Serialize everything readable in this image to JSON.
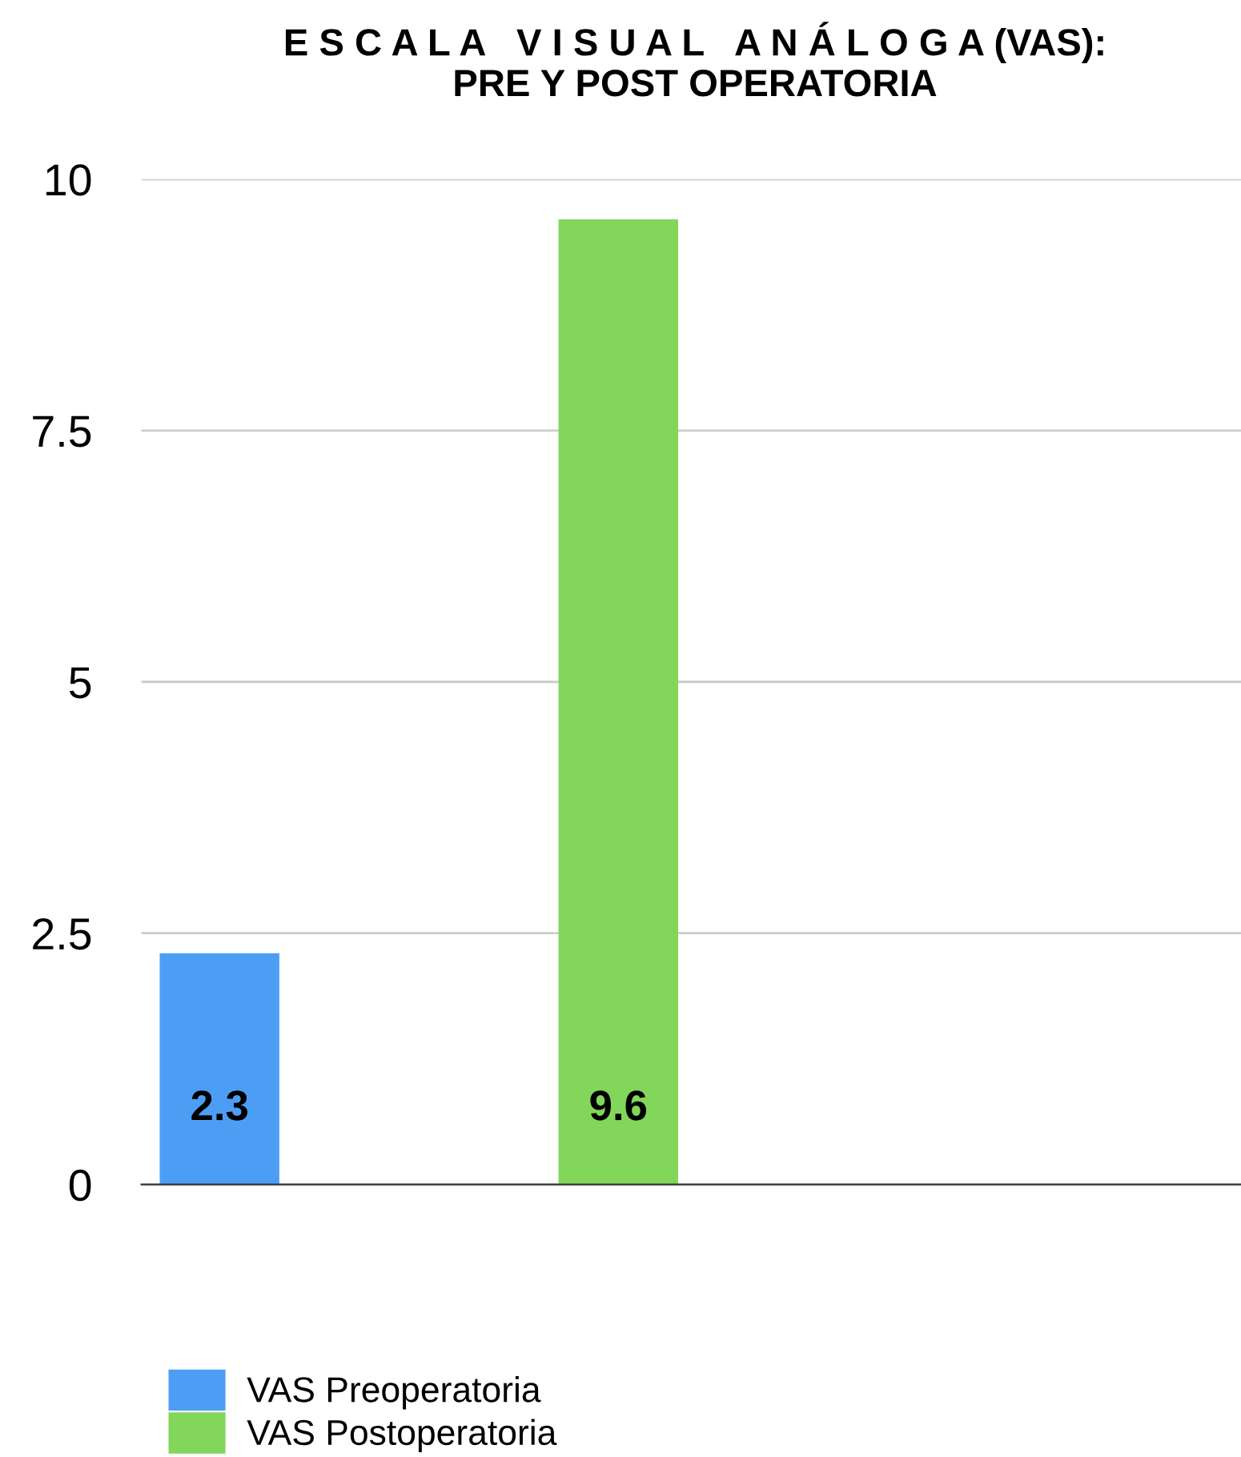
{
  "chart_data": {
    "type": "bar",
    "title": "E S C A L A   V I S U A L   A N Á L O G A (VAS):\nPRE Y POST OPERATORIA",
    "categories": [
      null
    ],
    "series": [
      {
        "name": "VAS Preoperatoria",
        "color": "#4c9ef5",
        "values": [
          2.3
        ]
      },
      {
        "name": "VAS Postoperatoria",
        "color": "#82d65a",
        "values": [
          9.6
        ]
      }
    ],
    "ylim": [
      0,
      10
    ],
    "yticks": [
      0,
      2.5,
      5,
      7.5,
      10
    ],
    "grid": "y",
    "legend": "bottom",
    "data_labels": true
  }
}
